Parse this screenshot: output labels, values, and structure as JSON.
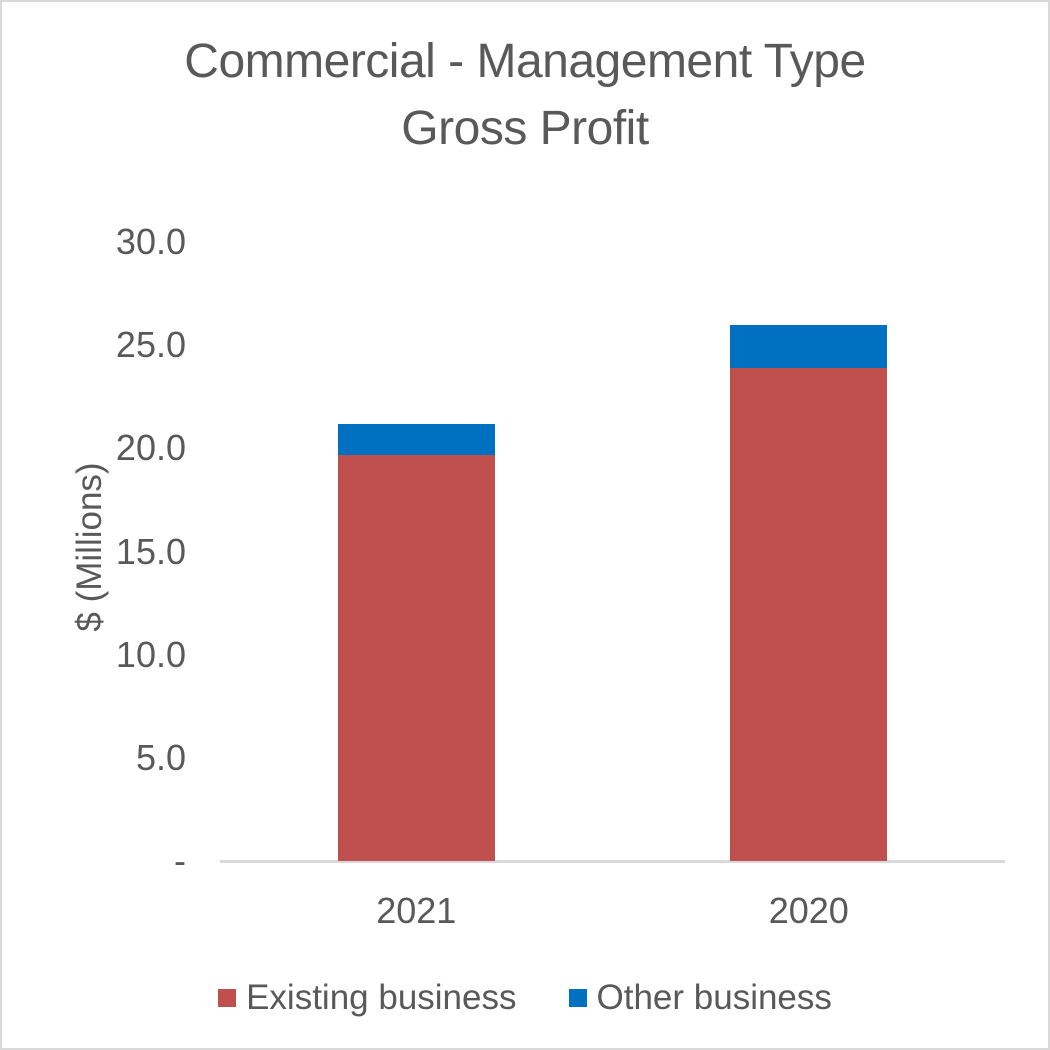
{
  "chart": {
    "title_line1": "Commercial - Management Type",
    "title_line2": "Gross Profit",
    "ylabel": "$ (Millions)"
  },
  "colors": {
    "text_gray": "#595959",
    "axis_line": "#d9d9d9",
    "existing_business": "#C0504D",
    "other_business": "#0070C0"
  },
  "chart_data": {
    "type": "bar",
    "stacked": true,
    "title": "Commercial - Management Type Gross Profit",
    "xlabel": "",
    "ylabel": "$ (Millions)",
    "categories": [
      "2021",
      "2020"
    ],
    "series": [
      {
        "name": "Existing business",
        "color": "#C0504D",
        "values": [
          19.7,
          23.9
        ]
      },
      {
        "name": "Other business",
        "color": "#0070C0",
        "values": [
          1.5,
          2.1
        ]
      }
    ],
    "totals": [
      21.2,
      26.0
    ],
    "ylim": [
      0,
      30
    ],
    "yticks": [
      {
        "value": 30,
        "label": "30.0"
      },
      {
        "value": 25,
        "label": "25.0"
      },
      {
        "value": 20,
        "label": "20.0"
      },
      {
        "value": 15,
        "label": "15.0"
      },
      {
        "value": 10,
        "label": "10.0"
      },
      {
        "value": 5,
        "label": "5.0"
      },
      {
        "value": 0,
        "label": "-"
      }
    ],
    "grid": false,
    "legend_position": "bottom"
  }
}
